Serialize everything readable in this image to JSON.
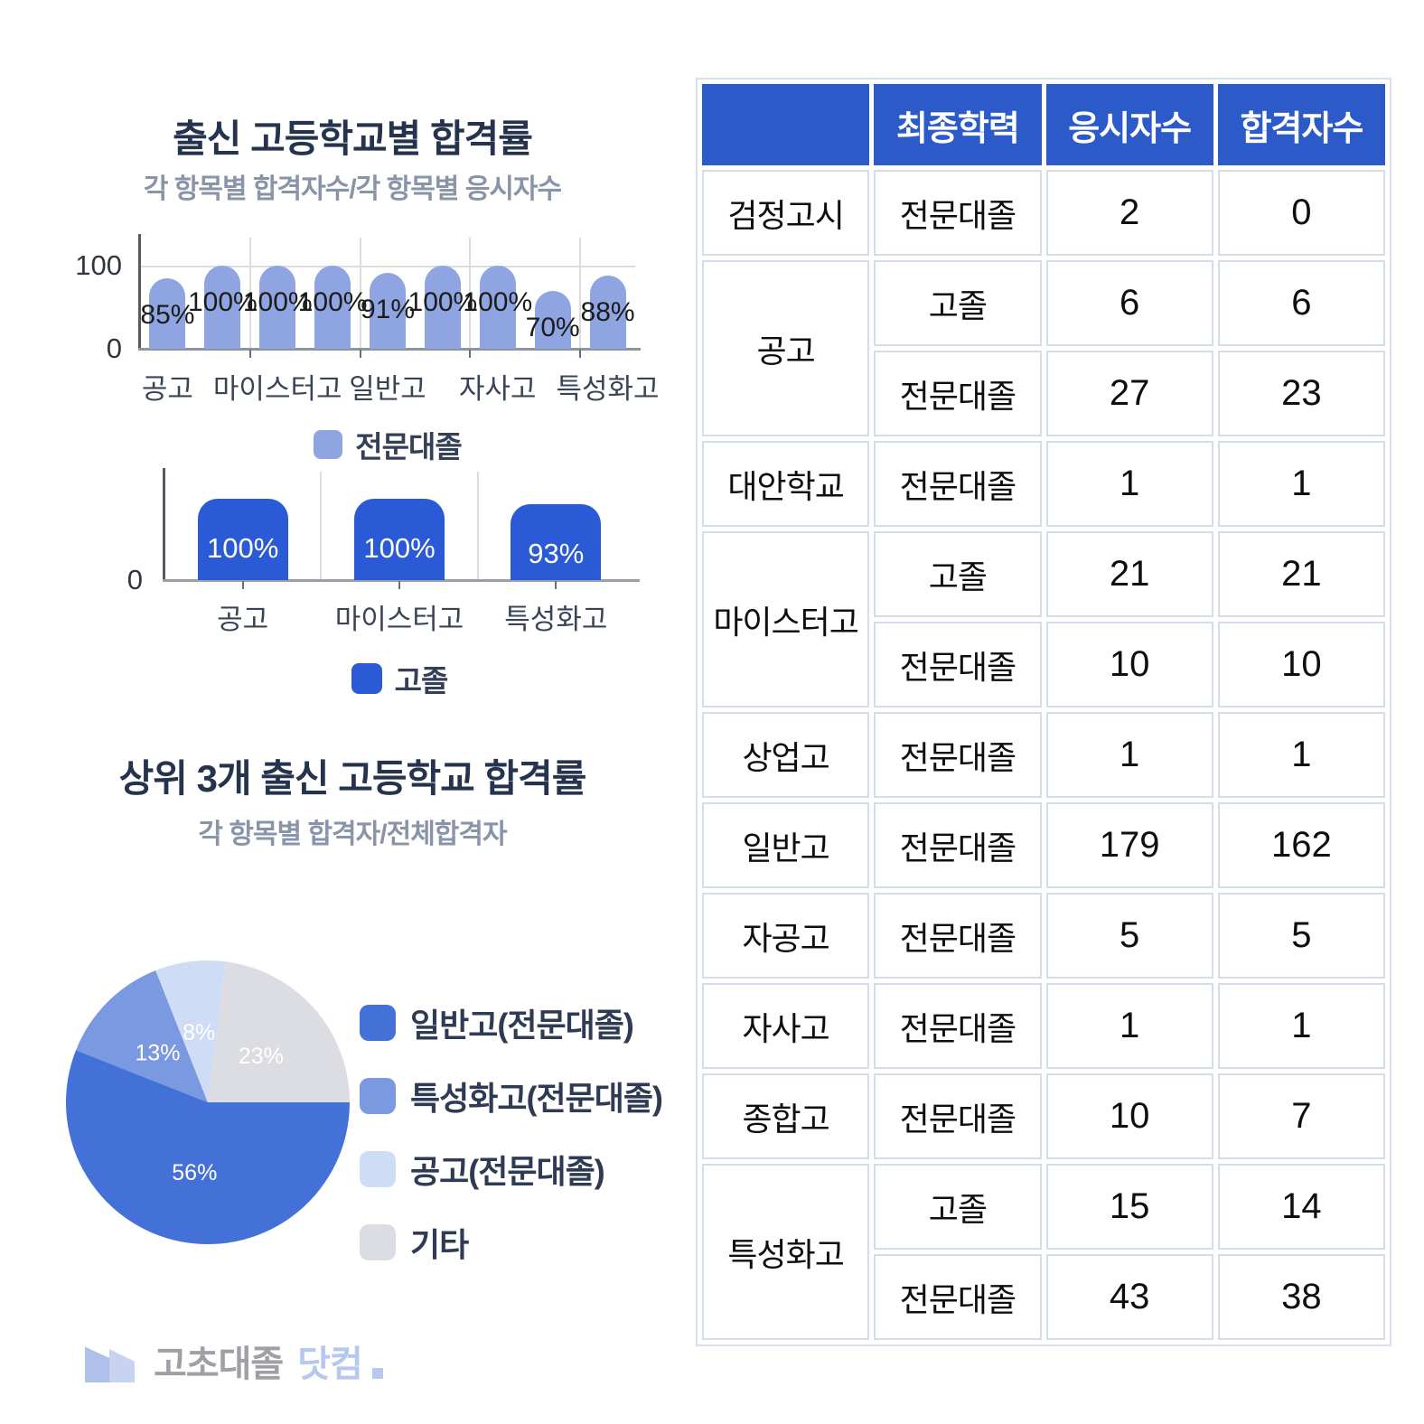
{
  "colors": {
    "bar_light": "#8FA5E1",
    "bar_dark": "#2B5AD7",
    "table_header_bg": "#2C5BC9",
    "title": "#26334D",
    "subtitle": "#8A94A9"
  },
  "chart_data": [
    {
      "type": "bar",
      "title": "출신 고등학교별 합격률",
      "subtitle": "각 항목별 합격자수/각 항목별 응시자수",
      "legend": "전문대졸",
      "color": "#8FA5E1",
      "values": [
        85,
        100,
        100,
        100,
        91,
        100,
        100,
        70,
        88
      ],
      "data_labels": [
        "85%",
        "100%",
        "100%",
        "100%",
        "91%",
        "100%",
        "100%",
        "70%",
        "88%"
      ],
      "x_tick_labels": [
        {
          "label": "공고",
          "slot": 0
        },
        {
          "label": "마이스터고",
          "slot": 2
        },
        {
          "label": "일반고",
          "slot": 4
        },
        {
          "label": "자사고",
          "slot": 6
        },
        {
          "label": "특성화고",
          "slot": 8
        }
      ],
      "ylim": [
        0,
        100
      ],
      "ytick_labels": [
        "100",
        "0"
      ],
      "grid": true
    },
    {
      "type": "bar",
      "legend": "고졸",
      "color": "#2B5AD7",
      "categories": [
        "공고",
        "마이스터고",
        "특성화고"
      ],
      "values": [
        100,
        100,
        93
      ],
      "data_labels": [
        "100%",
        "100%",
        "93%"
      ],
      "ytick_labels": [
        "0"
      ],
      "grid": true
    },
    {
      "type": "pie",
      "title": "상위 3개 출신 고등학교 합격률",
      "subtitle": "각 항목별 합격자/전체합격자",
      "start_angle_deg": 90,
      "legend_position": "right",
      "slices": [
        {
          "label": "일반고(전문대졸)",
          "value": 56,
          "text": "56%",
          "color": "#4471D8"
        },
        {
          "label": "특성화고(전문대졸)",
          "value": 13,
          "text": "13%",
          "color": "#7B99E1"
        },
        {
          "label": "공고(전문대졸)",
          "value": 8,
          "text": "8%",
          "color": "#CEDCF6"
        },
        {
          "label": "기타",
          "value": 23,
          "text": "23%",
          "color": "#DBDDE2"
        }
      ]
    }
  ],
  "table": {
    "headers": [
      "",
      "최종학력",
      "응시자수",
      "합격자수"
    ],
    "groups": [
      {
        "school": "검정고시",
        "rows": [
          [
            "전문대졸",
            "2",
            "0"
          ]
        ]
      },
      {
        "school": "공고",
        "rows": [
          [
            "고졸",
            "6",
            "6"
          ],
          [
            "전문대졸",
            "27",
            "23"
          ]
        ]
      },
      {
        "school": "대안학교",
        "rows": [
          [
            "전문대졸",
            "1",
            "1"
          ]
        ]
      },
      {
        "school": "마이스터고",
        "rows": [
          [
            "고졸",
            "21",
            "21"
          ],
          [
            "전문대졸",
            "10",
            "10"
          ]
        ]
      },
      {
        "school": "상업고",
        "rows": [
          [
            "전문대졸",
            "1",
            "1"
          ]
        ]
      },
      {
        "school": "일반고",
        "rows": [
          [
            "전문대졸",
            "179",
            "162"
          ]
        ]
      },
      {
        "school": "자공고",
        "rows": [
          [
            "전문대졸",
            "5",
            "5"
          ]
        ]
      },
      {
        "school": "자사고",
        "rows": [
          [
            "전문대졸",
            "1",
            "1"
          ]
        ]
      },
      {
        "school": "종합고",
        "rows": [
          [
            "전문대졸",
            "10",
            "7"
          ]
        ]
      },
      {
        "school": "특성화고",
        "rows": [
          [
            "고졸",
            "15",
            "14"
          ],
          [
            "전문대졸",
            "43",
            "38"
          ]
        ]
      }
    ]
  },
  "logo": {
    "brand_gray": "고초대졸",
    "brand_blue": "닷컴"
  }
}
